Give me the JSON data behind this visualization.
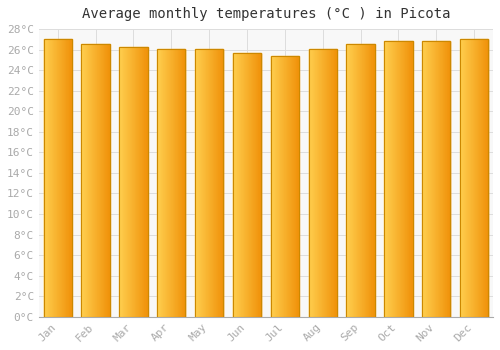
{
  "title": "Average monthly temperatures (°C ) in Picota",
  "months": [
    "Jan",
    "Feb",
    "Mar",
    "Apr",
    "May",
    "Jun",
    "Jul",
    "Aug",
    "Sep",
    "Oct",
    "Nov",
    "Dec"
  ],
  "values": [
    27.0,
    26.5,
    26.3,
    26.1,
    26.1,
    25.7,
    25.4,
    26.1,
    26.5,
    26.8,
    26.8,
    27.0
  ],
  "bar_color_left": "#FFD050",
  "bar_color_right": "#F0920A",
  "bar_edge_color": "#CC8800",
  "background_color": "#FFFFFF",
  "plot_bg_color": "#F8F8F8",
  "grid_color": "#DDDDDD",
  "ylim": [
    0,
    28
  ],
  "ytick_step": 2,
  "title_fontsize": 10,
  "tick_fontsize": 8,
  "tick_color": "#AAAAAA",
  "font_family": "monospace"
}
